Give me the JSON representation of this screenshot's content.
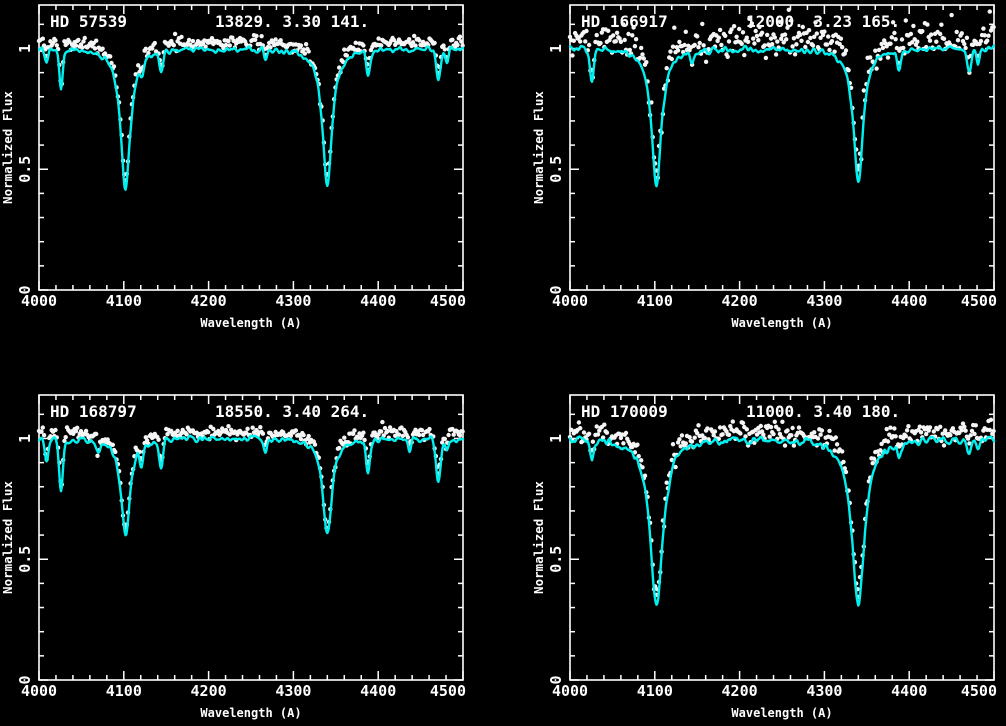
{
  "figure": {
    "background_color": "#000000",
    "axis_color": "#ffffff",
    "model_color": "#00f0f0",
    "observed_color": "#f5f5f5",
    "layout": "2x2 grid of spectral fit panels"
  },
  "chart_data": [
    {
      "type": "line",
      "panel": "top-left",
      "star_label": "HD 57539",
      "params_label": "13829.  3.30  141.",
      "teff": 13829,
      "logg": 3.3,
      "vsini": 141,
      "xlabel": "Wavelength (A)",
      "ylabel": "Normalized Flux",
      "xlim": [
        4000,
        4500
      ],
      "ylim": [
        0,
        1.18
      ],
      "xticks": [
        4000,
        4100,
        4200,
        4300,
        4400,
        4500
      ],
      "xtick_labels": [
        "4000",
        "4100",
        "4200",
        "4300",
        "4400",
        "4500"
      ],
      "x_minor_step": 20,
      "yticks": [
        0,
        0.5,
        1
      ],
      "ytick_labels": [
        "0",
        "0.5",
        "1"
      ],
      "y_minor_step": 0.1,
      "continuum": 1.0,
      "series": [
        {
          "name": "observed",
          "style": "points",
          "color": "#f5f5f5",
          "offset": 0.03,
          "noise_sigma": 0.013
        },
        {
          "name": "model",
          "style": "line",
          "color": "#00f0f0",
          "wiggle": 0.007
        }
      ],
      "absorption_lines": [
        {
          "center": 4009,
          "depth": 0.05,
          "width": 2.5,
          "shape": "gauss"
        },
        {
          "center": 4026,
          "depth": 0.17,
          "width": 3.0,
          "shape": "gauss"
        },
        {
          "center": 4102,
          "depth": 0.58,
          "width": 7.0,
          "shape": "lorentz"
        },
        {
          "center": 4121,
          "depth": 0.05,
          "width": 2.5,
          "shape": "gauss"
        },
        {
          "center": 4144,
          "depth": 0.09,
          "width": 3.0,
          "shape": "gauss"
        },
        {
          "center": 4267,
          "depth": 0.04,
          "width": 2.5,
          "shape": "gauss"
        },
        {
          "center": 4340,
          "depth": 0.56,
          "width": 7.0,
          "shape": "lorentz"
        },
        {
          "center": 4388,
          "depth": 0.1,
          "width": 3.0,
          "shape": "gauss"
        },
        {
          "center": 4471,
          "depth": 0.12,
          "width": 3.5,
          "shape": "gauss"
        },
        {
          "center": 4481,
          "depth": 0.07,
          "width": 2.5,
          "shape": "gauss"
        }
      ]
    },
    {
      "type": "line",
      "panel": "top-right",
      "star_label": "HD 166917",
      "params_label": "12000.  3.23  165.",
      "teff": 12000,
      "logg": 3.23,
      "vsini": 165,
      "xlabel": "Wavelength (A)",
      "ylabel": "Normalized Flux",
      "xlim": [
        4000,
        4500
      ],
      "ylim": [
        0,
        1.18
      ],
      "xticks": [
        4000,
        4100,
        4200,
        4300,
        4400,
        4500
      ],
      "xtick_labels": [
        "4000",
        "4100",
        "4200",
        "4300",
        "4400",
        "4500"
      ],
      "x_minor_step": 20,
      "yticks": [
        0,
        0.5,
        1
      ],
      "ytick_labels": [
        "0",
        "0.5",
        "1"
      ],
      "y_minor_step": 0.1,
      "continuum": 1.0,
      "series": [
        {
          "name": "observed",
          "style": "points",
          "color": "#f5f5f5",
          "offset": 0.045,
          "noise_sigma": 0.035
        },
        {
          "name": "model",
          "style": "line",
          "color": "#00f0f0",
          "wiggle": 0.007
        }
      ],
      "absorption_lines": [
        {
          "center": 4026,
          "depth": 0.13,
          "width": 3.0,
          "shape": "gauss"
        },
        {
          "center": 4102,
          "depth": 0.57,
          "width": 7.0,
          "shape": "lorentz"
        },
        {
          "center": 4144,
          "depth": 0.05,
          "width": 3.0,
          "shape": "gauss"
        },
        {
          "center": 4340,
          "depth": 0.55,
          "width": 7.0,
          "shape": "lorentz"
        },
        {
          "center": 4388,
          "depth": 0.08,
          "width": 3.0,
          "shape": "gauss"
        },
        {
          "center": 4471,
          "depth": 0.09,
          "width": 3.5,
          "shape": "gauss"
        },
        {
          "center": 4481,
          "depth": 0.06,
          "width": 2.5,
          "shape": "gauss"
        }
      ]
    },
    {
      "type": "line",
      "panel": "bottom-left",
      "star_label": "HD 168797",
      "params_label": "18550.  3.40  264.",
      "teff": 18550,
      "logg": 3.4,
      "vsini": 264,
      "xlabel": "Wavelength (A)",
      "ylabel": "Normalized Flux",
      "xlim": [
        4000,
        4500
      ],
      "ylim": [
        0,
        1.18
      ],
      "xticks": [
        4000,
        4100,
        4200,
        4300,
        4400,
        4500
      ],
      "xtick_labels": [
        "4000",
        "4100",
        "4200",
        "4300",
        "4400",
        "4500"
      ],
      "x_minor_step": 20,
      "yticks": [
        0,
        0.5,
        1
      ],
      "ytick_labels": [
        "0",
        "0.5",
        "1"
      ],
      "y_minor_step": 0.1,
      "continuum": 1.0,
      "series": [
        {
          "name": "observed",
          "style": "points",
          "color": "#f5f5f5",
          "offset": 0.028,
          "noise_sigma": 0.012
        },
        {
          "name": "model",
          "style": "line",
          "color": "#00f0f0",
          "wiggle": 0.007
        }
      ],
      "absorption_lines": [
        {
          "center": 4009,
          "depth": 0.1,
          "width": 2.8,
          "shape": "gauss"
        },
        {
          "center": 4026,
          "depth": 0.22,
          "width": 3.2,
          "shape": "gauss"
        },
        {
          "center": 4070,
          "depth": 0.05,
          "width": 3.0,
          "shape": "gauss"
        },
        {
          "center": 4102,
          "depth": 0.4,
          "width": 6.5,
          "shape": "lorentz"
        },
        {
          "center": 4121,
          "depth": 0.08,
          "width": 2.8,
          "shape": "gauss"
        },
        {
          "center": 4144,
          "depth": 0.12,
          "width": 3.0,
          "shape": "gauss"
        },
        {
          "center": 4267,
          "depth": 0.06,
          "width": 2.5,
          "shape": "gauss"
        },
        {
          "center": 4340,
          "depth": 0.4,
          "width": 6.5,
          "shape": "lorentz"
        },
        {
          "center": 4388,
          "depth": 0.14,
          "width": 3.0,
          "shape": "gauss"
        },
        {
          "center": 4437,
          "depth": 0.05,
          "width": 2.5,
          "shape": "gauss"
        },
        {
          "center": 4471,
          "depth": 0.18,
          "width": 4.0,
          "shape": "gauss"
        },
        {
          "center": 4481,
          "depth": 0.05,
          "width": 2.5,
          "shape": "gauss"
        }
      ]
    },
    {
      "type": "line",
      "panel": "bottom-right",
      "star_label": "HD 170009",
      "params_label": "11000.  3.40  180.",
      "teff": 11000,
      "logg": 3.4,
      "vsini": 180,
      "xlabel": "Wavelength (A)",
      "ylabel": "Normalized Flux",
      "xlim": [
        4000,
        4500
      ],
      "ylim": [
        0,
        1.18
      ],
      "xticks": [
        4000,
        4100,
        4200,
        4300,
        4400,
        4500
      ],
      "xtick_labels": [
        "4000",
        "4100",
        "4200",
        "4300",
        "4400",
        "4500"
      ],
      "x_minor_step": 20,
      "yticks": [
        0,
        0.5,
        1
      ],
      "ytick_labels": [
        "0",
        "0.5",
        "1"
      ],
      "y_minor_step": 0.1,
      "continuum": 1.0,
      "series": [
        {
          "name": "observed",
          "style": "points",
          "color": "#f5f5f5",
          "offset": 0.035,
          "noise_sigma": 0.022
        },
        {
          "name": "model",
          "style": "line",
          "color": "#00f0f0",
          "wiggle": 0.009
        }
      ],
      "absorption_lines": [
        {
          "center": 4026,
          "depth": 0.08,
          "width": 3.0,
          "shape": "gauss"
        },
        {
          "center": 4102,
          "depth": 0.7,
          "width": 9.0,
          "shape": "lorentz"
        },
        {
          "center": 4340,
          "depth": 0.68,
          "width": 9.0,
          "shape": "lorentz"
        },
        {
          "center": 4388,
          "depth": 0.05,
          "width": 3.0,
          "shape": "gauss"
        },
        {
          "center": 4471,
          "depth": 0.05,
          "width": 3.0,
          "shape": "gauss"
        },
        {
          "center": 4481,
          "depth": 0.05,
          "width": 2.5,
          "shape": "gauss"
        }
      ]
    }
  ]
}
